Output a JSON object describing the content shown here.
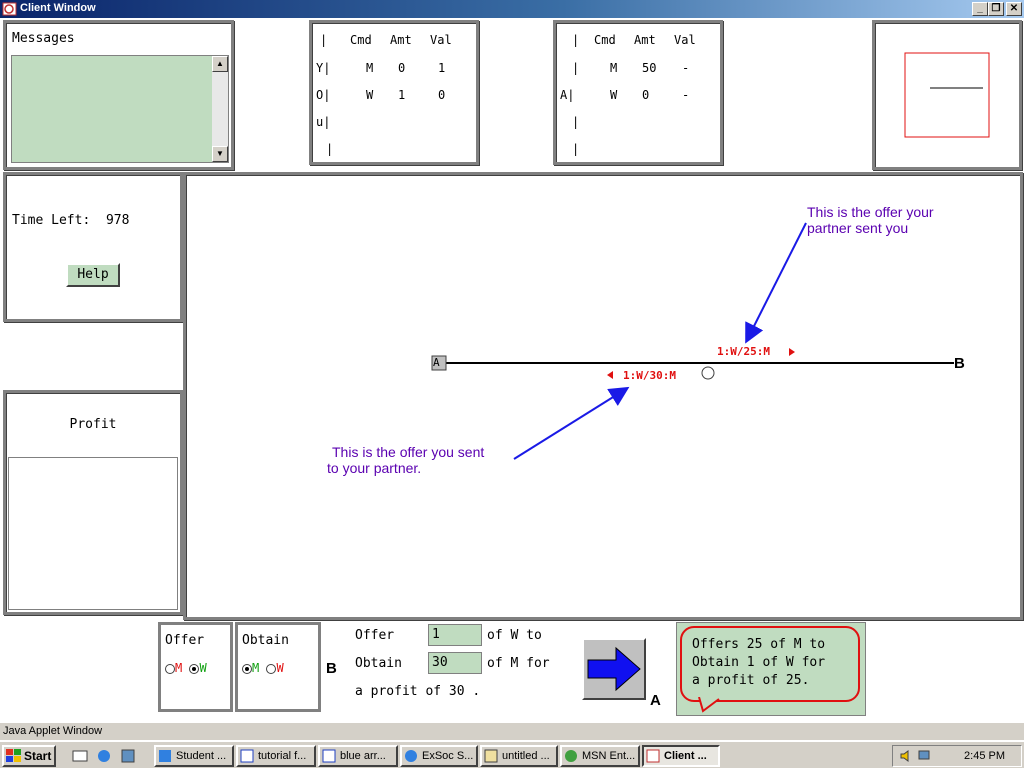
{
  "window": {
    "title": "Client Window",
    "min_label": "_",
    "max_label": "❐",
    "close_label": "✕"
  },
  "messages": {
    "title": "Messages",
    "content": ""
  },
  "you_table": {
    "headers": [
      "|",
      "Cmd",
      "Amt",
      "Val"
    ],
    "side_label": [
      "Y|",
      "O|",
      "u|",
      "|"
    ],
    "rows": [
      [
        "M",
        "0",
        "1"
      ],
      [
        "W",
        "1",
        "0"
      ]
    ]
  },
  "a_table": {
    "headers": [
      "|",
      "Cmd",
      "Amt",
      "Val"
    ],
    "side_label": [
      "|",
      "A|",
      "|",
      "|"
    ],
    "rows": [
      [
        "M",
        "50",
        "-"
      ],
      [
        "W",
        "0",
        "-"
      ]
    ]
  },
  "time": {
    "label": "Time Left:",
    "value": "978",
    "help_label": "Help"
  },
  "profit": {
    "title": "Profit"
  },
  "canvas": {
    "node_a": "A",
    "node_b": "B",
    "partner_offer_tag": "1:W/25:M",
    "your_offer_tag": "1:W/30:M",
    "partner_annotation_line1": "This is the offer your",
    "partner_annotation_line2": "partner sent you",
    "your_annotation_line1": "This is the offer you sent",
    "your_annotation_line2": "to your partner.",
    "arrow_color": "#1a1ae6",
    "line_color": "#000000",
    "tag_color": "#e01010",
    "annotation_color": "#5a00b0"
  },
  "offer_box": {
    "title": "Offer",
    "opt1": "M",
    "opt2": "W",
    "selected": "W"
  },
  "obtain_box": {
    "title": "Obtain",
    "opt1": "M",
    "opt2": "W",
    "selected": "M"
  },
  "deal": {
    "b_label": "B",
    "a_label": "A",
    "offer_word": "Offer",
    "offer_value": "1",
    "offer_suffix": "of W to",
    "obtain_word": "Obtain",
    "obtain_value": "30",
    "obtain_suffix": "of M for",
    "profit_text": "a profit of 30 ."
  },
  "bubble": {
    "line1": "Offers 25 of M to",
    "line2": "Obtain 1 of W for",
    "line3": "a profit of 25."
  },
  "statusbar": {
    "text": "Java Applet Window"
  },
  "taskbar": {
    "start": "Start",
    "items": [
      "Student ...",
      "tutorial f...",
      "blue arr...",
      "ExSoc S...",
      "untitled ...",
      "MSN Ent...",
      "Client ..."
    ],
    "clock": "2:45 PM"
  },
  "colors": {
    "panel_green": "#c0dcc0",
    "title_blue": "#0a246a"
  }
}
